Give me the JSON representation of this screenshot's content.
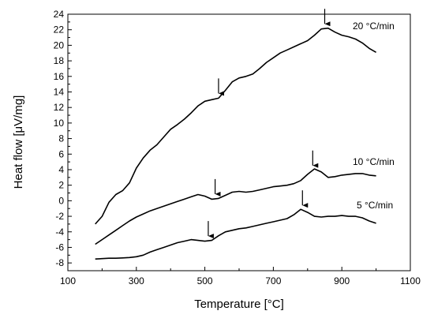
{
  "chart_data": {
    "type": "line",
    "xlabel": "Temperature [°C]",
    "ylabel": "Heat flow [μV/mg]",
    "xlim": [
      100,
      1100
    ],
    "ylim": [
      -9,
      24
    ],
    "x_ticks": [
      100,
      300,
      500,
      700,
      900,
      1100
    ],
    "y_ticks": [
      -8,
      -6,
      -4,
      -2,
      0,
      2,
      4,
      6,
      8,
      10,
      12,
      14,
      16,
      18,
      20,
      22,
      24
    ],
    "grid": false,
    "series": [
      {
        "name": "20 °C/min",
        "points": [
          [
            180,
            -3.0
          ],
          [
            200,
            -2.0
          ],
          [
            220,
            -0.2
          ],
          [
            240,
            0.8
          ],
          [
            260,
            1.3
          ],
          [
            280,
            2.3
          ],
          [
            300,
            4.2
          ],
          [
            320,
            5.5
          ],
          [
            340,
            6.5
          ],
          [
            360,
            7.2
          ],
          [
            380,
            8.2
          ],
          [
            400,
            9.2
          ],
          [
            420,
            9.8
          ],
          [
            440,
            10.5
          ],
          [
            460,
            11.3
          ],
          [
            480,
            12.2
          ],
          [
            500,
            12.8
          ],
          [
            520,
            13.0
          ],
          [
            540,
            13.2
          ],
          [
            560,
            14.2
          ],
          [
            580,
            15.3
          ],
          [
            600,
            15.8
          ],
          [
            620,
            16.0
          ],
          [
            640,
            16.3
          ],
          [
            660,
            17.0
          ],
          [
            680,
            17.8
          ],
          [
            700,
            18.4
          ],
          [
            720,
            19.0
          ],
          [
            740,
            19.4
          ],
          [
            760,
            19.8
          ],
          [
            780,
            20.2
          ],
          [
            800,
            20.6
          ],
          [
            820,
            21.3
          ],
          [
            840,
            22.1
          ],
          [
            860,
            22.2
          ],
          [
            880,
            21.7
          ],
          [
            900,
            21.3
          ],
          [
            920,
            21.1
          ],
          [
            940,
            20.8
          ],
          [
            960,
            20.3
          ],
          [
            980,
            19.6
          ],
          [
            1000,
            19.1
          ]
        ],
        "arrows": [
          540,
          850
        ],
        "label": "20 °C/min"
      },
      {
        "name": "10 °C/min",
        "points": [
          [
            180,
            -5.6
          ],
          [
            200,
            -5.0
          ],
          [
            220,
            -4.4
          ],
          [
            240,
            -3.8
          ],
          [
            260,
            -3.2
          ],
          [
            280,
            -2.6
          ],
          [
            300,
            -2.1
          ],
          [
            320,
            -1.7
          ],
          [
            340,
            -1.3
          ],
          [
            360,
            -1.0
          ],
          [
            380,
            -0.7
          ],
          [
            400,
            -0.4
          ],
          [
            420,
            -0.1
          ],
          [
            440,
            0.2
          ],
          [
            460,
            0.5
          ],
          [
            480,
            0.8
          ],
          [
            500,
            0.6
          ],
          [
            520,
            0.2
          ],
          [
            540,
            0.3
          ],
          [
            560,
            0.7
          ],
          [
            580,
            1.1
          ],
          [
            600,
            1.2
          ],
          [
            620,
            1.1
          ],
          [
            640,
            1.2
          ],
          [
            660,
            1.4
          ],
          [
            680,
            1.6
          ],
          [
            700,
            1.8
          ],
          [
            720,
            1.9
          ],
          [
            740,
            2.0
          ],
          [
            760,
            2.2
          ],
          [
            780,
            2.6
          ],
          [
            800,
            3.4
          ],
          [
            820,
            4.1
          ],
          [
            840,
            3.7
          ],
          [
            860,
            3.0
          ],
          [
            880,
            3.1
          ],
          [
            900,
            3.3
          ],
          [
            920,
            3.4
          ],
          [
            940,
            3.5
          ],
          [
            960,
            3.5
          ],
          [
            980,
            3.3
          ],
          [
            1000,
            3.2
          ]
        ],
        "arrows": [
          530,
          815
        ],
        "label": "10 °C/min"
      },
      {
        "name": "5 °C/min",
        "points": [
          [
            180,
            -7.5
          ],
          [
            200,
            -7.45
          ],
          [
            220,
            -7.4
          ],
          [
            240,
            -7.4
          ],
          [
            260,
            -7.35
          ],
          [
            280,
            -7.3
          ],
          [
            300,
            -7.2
          ],
          [
            320,
            -7.0
          ],
          [
            340,
            -6.6
          ],
          [
            360,
            -6.3
          ],
          [
            380,
            -6.0
          ],
          [
            400,
            -5.7
          ],
          [
            420,
            -5.4
          ],
          [
            440,
            -5.2
          ],
          [
            460,
            -5.0
          ],
          [
            480,
            -5.1
          ],
          [
            500,
            -5.2
          ],
          [
            520,
            -5.1
          ],
          [
            540,
            -4.5
          ],
          [
            560,
            -4.0
          ],
          [
            580,
            -3.8
          ],
          [
            600,
            -3.6
          ],
          [
            620,
            -3.5
          ],
          [
            640,
            -3.3
          ],
          [
            660,
            -3.1
          ],
          [
            680,
            -2.9
          ],
          [
            700,
            -2.7
          ],
          [
            720,
            -2.5
          ],
          [
            740,
            -2.3
          ],
          [
            760,
            -1.8
          ],
          [
            780,
            -1.1
          ],
          [
            800,
            -1.5
          ],
          [
            820,
            -2.0
          ],
          [
            840,
            -2.1
          ],
          [
            860,
            -2.0
          ],
          [
            880,
            -2.0
          ],
          [
            900,
            -1.9
          ],
          [
            920,
            -2.0
          ],
          [
            940,
            -2.0
          ],
          [
            960,
            -2.2
          ],
          [
            980,
            -2.6
          ],
          [
            1000,
            -2.9
          ]
        ],
        "arrows": [
          510,
          785
        ],
        "label": "5 °C/min"
      }
    ]
  }
}
